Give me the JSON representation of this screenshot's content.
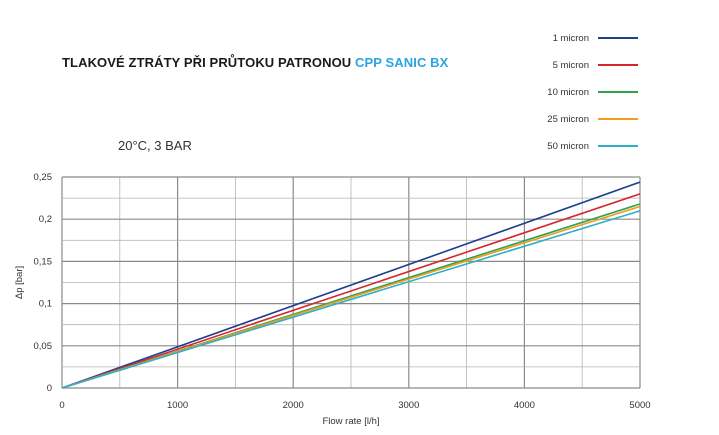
{
  "header": {
    "title_main": "TLAKOVÉ ZTRÁTY PŘI PRŮTOKU PATRONOU",
    "title_accent": "CPP SANIC BX",
    "subtitle": "20°C, 3 BAR"
  },
  "chart_data": {
    "type": "line",
    "xlabel": "Flow rate [l/h]",
    "ylabel": "Δp [bar]",
    "xlim": [
      0,
      5000
    ],
    "ylim": [
      0,
      0.25
    ],
    "xticks": [
      "0",
      "1000",
      "2000",
      "3000",
      "4000",
      "5000"
    ],
    "yticks": [
      "0",
      "0,05",
      "0,1",
      "0,15",
      "0,2",
      "0,25"
    ],
    "x": [
      0,
      5000
    ],
    "grid": true,
    "legend_position": "top-right",
    "series": [
      {
        "name": "1 micron",
        "color": "#1f3f8f",
        "values": [
          0,
          0.244
        ]
      },
      {
        "name": "5 micron",
        "color": "#d6262e",
        "values": [
          0,
          0.23
        ]
      },
      {
        "name": "10 micron",
        "color": "#2ea44f",
        "values": [
          0,
          0.218
        ]
      },
      {
        "name": "25 micron",
        "color": "#f39a21",
        "values": [
          0,
          0.215
        ]
      },
      {
        "name": "50 micron",
        "color": "#2fb0c9",
        "values": [
          0,
          0.21
        ]
      }
    ]
  }
}
